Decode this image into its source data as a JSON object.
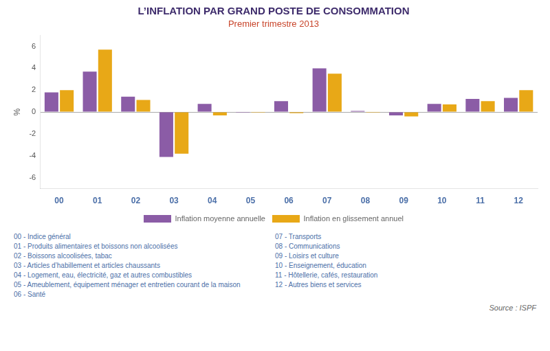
{
  "chart_data": {
    "type": "bar",
    "title": "L’INFLATION PAR GRAND POSTE DE CONSOMMATION",
    "subtitle": "Premier trimestre 2013",
    "categories": [
      "00",
      "01",
      "02",
      "03",
      "04",
      "05",
      "06",
      "07",
      "08",
      "09",
      "10",
      "11",
      "12"
    ],
    "series": [
      {
        "name": "Inflation moyenne annuelle",
        "color": "#8B5CA6",
        "values": [
          1.8,
          3.7,
          1.4,
          -4.1,
          0.75,
          -0.05,
          1.0,
          4.0,
          0.1,
          -0.3,
          0.75,
          1.2,
          1.3
        ]
      },
      {
        "name": "Inflation en glissement annuel",
        "color": "#E8A817",
        "values": [
          2.0,
          5.7,
          1.1,
          -3.8,
          -0.3,
          -0.05,
          -0.1,
          3.5,
          -0.05,
          -0.4,
          0.7,
          1.0,
          2.0
        ]
      }
    ],
    "ylabel": "%",
    "ylim": [
      -7,
      7
    ],
    "yticks": [
      -6,
      -4,
      -2,
      0,
      2,
      4,
      6
    ],
    "grid": false,
    "legend": "bottom",
    "annotations": [
      [
        "00 - Indice général",
        "01 - Produits alimentaires et boissons non alcoolisées",
        "02 - Boissons alcoolisées, tabac",
        "03 - Articles d’habillement et articles chaussants",
        "04 - Logement, eau, électricité, gaz et autres combustibles",
        "05 - Ameublement, équipement ménager et entretien courant de la maison",
        "06 - Santé"
      ],
      [
        "07 - Transports",
        "08 - Communications",
        "09 - Loisirs et culture",
        "10 - Enseignement, éducation",
        "11 - Hôtellerie, cafés, restauration",
        "12 - Autres biens et services"
      ]
    ],
    "source": "Source : ISPF"
  }
}
